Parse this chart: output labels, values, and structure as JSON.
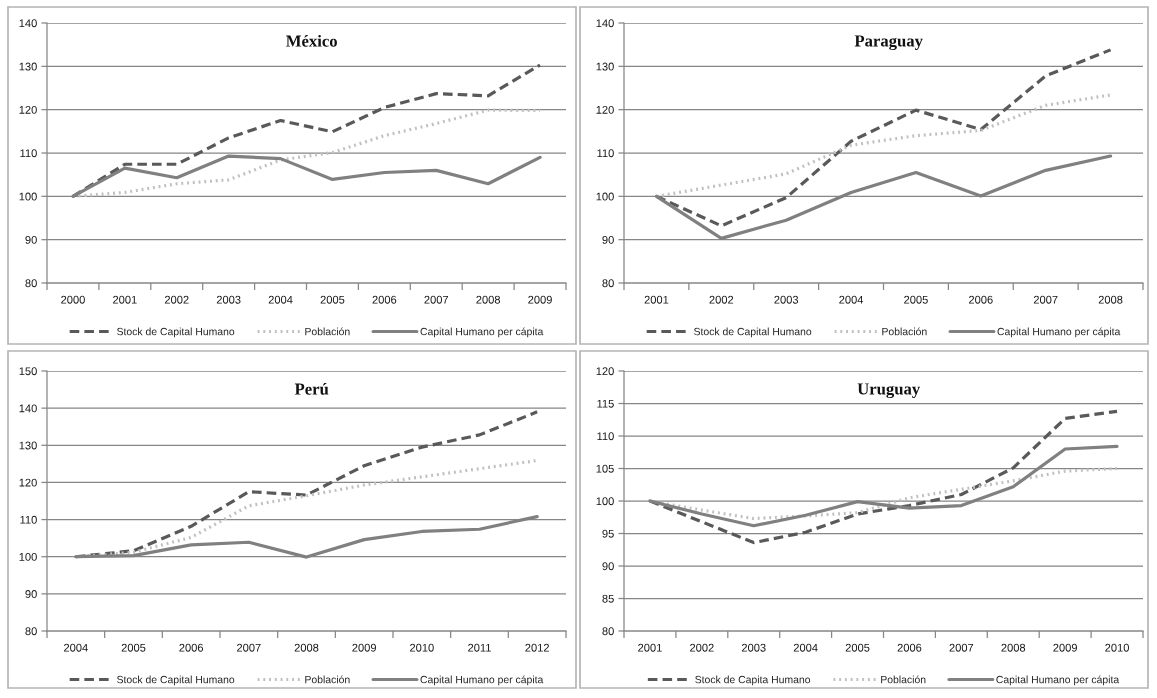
{
  "chart_data": [
    {
      "type": "line",
      "title": "México",
      "categories": [
        "2000",
        "2001",
        "2002",
        "2003",
        "2004",
        "2005",
        "2006",
        "2007",
        "2008",
        "2009"
      ],
      "series": [
        {
          "name": "Stock de Capital Humano",
          "color": "#595959",
          "line_style": "dashed",
          "values": [
            100,
            107.4,
            107.4,
            113.5,
            117.5,
            114.9,
            120.5,
            123.7,
            123.2,
            130.3
          ]
        },
        {
          "name": "Población",
          "color": "#c0c0c0",
          "line_style": "dotted",
          "values": [
            100,
            100.9,
            102.9,
            103.8,
            108.4,
            110.1,
            114.0,
            116.8,
            119.9,
            119.8
          ]
        },
        {
          "name": "Capital Humano per cápita",
          "color": "#808080",
          "line_style": "solid",
          "values": [
            100,
            106.5,
            104.3,
            109.3,
            108.7,
            103.9,
            105.5,
            106.0,
            102.9,
            109.0
          ]
        }
      ],
      "ylim": [
        80,
        140
      ],
      "yticks": [
        80,
        90,
        100,
        110,
        120,
        130,
        140
      ],
      "grid": "y",
      "legend": "bottom"
    },
    {
      "type": "line",
      "title": "Paraguay",
      "categories": [
        "2001",
        "2002",
        "2003",
        "2004",
        "2005",
        "2006",
        "2007",
        "2008"
      ],
      "series": [
        {
          "name": "Stock de Capital Humano",
          "color": "#595959",
          "line_style": "dashed",
          "values": [
            100,
            93.2,
            99.7,
            112.7,
            119.9,
            115.4,
            127.8,
            133.8
          ]
        },
        {
          "name": "Población",
          "color": "#c0c0c0",
          "line_style": "dotted",
          "values": [
            100,
            102.6,
            105.2,
            111.8,
            114.0,
            115.2,
            121.0,
            123.4
          ]
        },
        {
          "name": "Capital Humano per cápita",
          "color": "#808080",
          "line_style": "solid",
          "values": [
            100,
            90.3,
            94.5,
            100.9,
            105.5,
            100.1,
            106.0,
            109.3
          ]
        }
      ],
      "ylim": [
        80,
        140
      ],
      "yticks": [
        80,
        90,
        100,
        110,
        120,
        130,
        140
      ],
      "grid": "y",
      "legend": "bottom"
    },
    {
      "type": "line",
      "title": "Perú",
      "categories": [
        "2004",
        "2005",
        "2006",
        "2007",
        "2008",
        "2009",
        "2010",
        "2011",
        "2012"
      ],
      "series": [
        {
          "name": "Stock de Capital Humano",
          "color": "#595959",
          "line_style": "dashed",
          "values": [
            100,
            101.6,
            108.2,
            117.5,
            116.6,
            124.5,
            129.5,
            132.8,
            139.0
          ]
        },
        {
          "name": "Población",
          "color": "#c0c0c0",
          "line_style": "dotted",
          "values": [
            100,
            101.2,
            105.2,
            113.7,
            116.4,
            119.3,
            121.5,
            123.7,
            125.9
          ]
        },
        {
          "name": "Capital Humano per cápita",
          "color": "#808080",
          "line_style": "solid",
          "values": [
            100,
            100.3,
            103.2,
            103.9,
            99.9,
            104.6,
            106.8,
            107.4,
            110.8
          ]
        }
      ],
      "ylim": [
        80,
        150
      ],
      "yticks": [
        80,
        90,
        100,
        110,
        120,
        130,
        140,
        150
      ],
      "grid": "y",
      "legend": "bottom"
    },
    {
      "type": "line",
      "title": "Uruguay",
      "categories": [
        "2001",
        "2002",
        "2003",
        "2004",
        "2005",
        "2006",
        "2007",
        "2008",
        "2009",
        "2010"
      ],
      "series": [
        {
          "name": "Stock de Capita Humano",
          "color": "#595959",
          "line_style": "dashed",
          "values": [
            100,
            96.8,
            93.6,
            95.2,
            98.0,
            99.3,
            101.0,
            105.1,
            112.7,
            113.8
          ]
        },
        {
          "name": "Población",
          "color": "#c0c0c0",
          "line_style": "dotted",
          "values": [
            100,
            98.6,
            97.3,
            97.7,
            98.2,
            100.5,
            101.8,
            103.1,
            104.6,
            105.0
          ]
        },
        {
          "name": "Capital Humano per cápita",
          "color": "#808080",
          "line_style": "solid",
          "values": [
            100,
            98.0,
            96.2,
            97.8,
            99.9,
            98.9,
            99.3,
            102.2,
            108.0,
            108.4
          ]
        }
      ],
      "ylim": [
        80,
        120
      ],
      "yticks": [
        80,
        85,
        90,
        95,
        100,
        105,
        110,
        115,
        120
      ],
      "grid": "y",
      "legend": "bottom"
    }
  ]
}
